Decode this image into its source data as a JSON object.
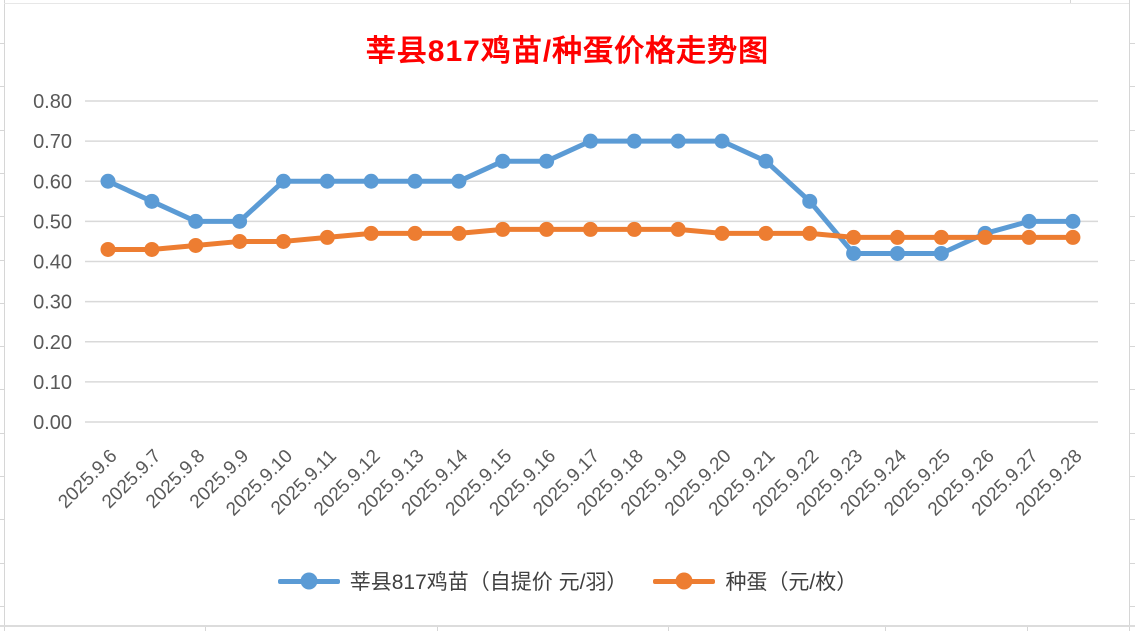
{
  "chart_data": {
    "type": "line",
    "title": "莘县817鸡苗/种蛋价格走势图",
    "title_color": "#FF0000",
    "categories": [
      "2025.9.6",
      "2025.9.7",
      "2025.9.8",
      "2025.9.9",
      "2025.9.10",
      "2025.9.11",
      "2025.9.12",
      "2025.9.13",
      "2025.9.14",
      "2025.9.15",
      "2025.9.16",
      "2025.9.17",
      "2025.9.18",
      "2025.9.19",
      "2025.9.20",
      "2025.9.21",
      "2025.9.22",
      "2025.9.23",
      "2025.9.24",
      "2025.9.25",
      "2025.9.26",
      "2025.9.27",
      "2025.9.28"
    ],
    "series": [
      {
        "name": "莘县817鸡苗（自提价 元/羽）",
        "color": "#5B9BD5",
        "values": [
          0.6,
          0.55,
          0.5,
          0.5,
          0.6,
          0.6,
          0.6,
          0.6,
          0.6,
          0.65,
          0.65,
          0.7,
          0.7,
          0.7,
          0.7,
          0.65,
          0.55,
          0.42,
          0.42,
          0.42,
          0.47,
          0.5,
          0.5
        ]
      },
      {
        "name": "种蛋（元/枚）",
        "color": "#ED7D31",
        "values": [
          0.43,
          0.43,
          0.44,
          0.45,
          0.45,
          0.46,
          0.47,
          0.47,
          0.47,
          0.48,
          0.48,
          0.48,
          0.48,
          0.48,
          0.47,
          0.47,
          0.47,
          0.46,
          0.46,
          0.46,
          0.46,
          0.46,
          0.46
        ]
      }
    ],
    "ylim": [
      0.0,
      0.8
    ],
    "ytick_step": 0.1,
    "ytick_labels": [
      "0.00",
      "0.10",
      "0.20",
      "0.30",
      "0.40",
      "0.50",
      "0.60",
      "0.70",
      "0.80"
    ],
    "grid": "horizontal",
    "legend_position": "bottom",
    "axis_text_color": "#595959",
    "gridline_color": "#D9D9D9"
  }
}
